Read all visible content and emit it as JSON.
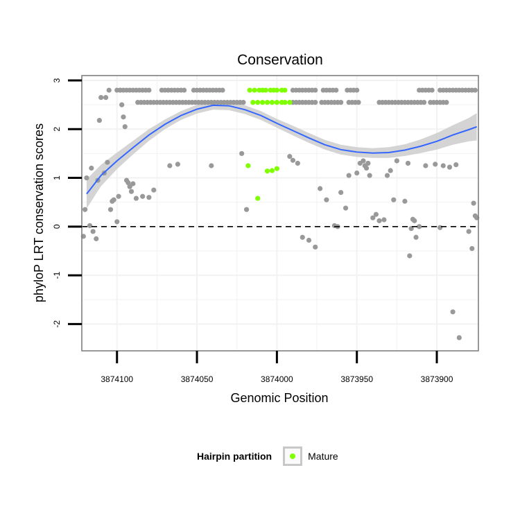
{
  "chart_data": {
    "type": "scatter",
    "title": "Conservation",
    "xlabel": "Genomic Position",
    "ylabel": "phyloP LRT conservation scores",
    "x_reversed": true,
    "xlim": [
      3874122,
      3873874
    ],
    "ylim": [
      -2.55,
      3.1
    ],
    "x_ticks": [
      3874100,
      3874050,
      3874000,
      3873950,
      3873900
    ],
    "x_tick_labels": [
      "3874100",
      "3874050",
      "3874000",
      "3873950",
      "3873900"
    ],
    "y_ticks": [
      -2,
      -1,
      0,
      1,
      2,
      3
    ],
    "y_tick_labels": [
      "-2",
      "-1",
      "0",
      "1",
      "2",
      "3"
    ],
    "hline": {
      "y": 0,
      "style": "dashed"
    },
    "grid": true,
    "background": "#ffffff",
    "colors": {
      "other": "#999999",
      "mature": "#7fff00",
      "smooth": "#3366ff",
      "band": "#cccccc",
      "panel_border": "#7f7f7f",
      "grid": "#f2f2f2"
    },
    "smooth": {
      "x": [
        3874119,
        3874110,
        3874100,
        3874090,
        3874080,
        3874070,
        3874060,
        3874050,
        3874040,
        3874030,
        3874020,
        3874010,
        3874000,
        3873990,
        3873980,
        3873970,
        3873960,
        3873950,
        3873940,
        3873930,
        3873920,
        3873910,
        3873900,
        3873890,
        3873880,
        3873875
      ],
      "y": [
        0.67,
        1.05,
        1.35,
        1.62,
        1.88,
        2.1,
        2.28,
        2.41,
        2.49,
        2.48,
        2.4,
        2.28,
        2.12,
        1.97,
        1.82,
        1.68,
        1.58,
        1.53,
        1.51,
        1.52,
        1.57,
        1.65,
        1.75,
        1.88,
        1.99,
        2.05
      ],
      "se": [
        0.3,
        0.22,
        0.17,
        0.14,
        0.12,
        0.1,
        0.09,
        0.09,
        0.09,
        0.09,
        0.09,
        0.09,
        0.09,
        0.1,
        0.1,
        0.1,
        0.1,
        0.1,
        0.1,
        0.11,
        0.12,
        0.14,
        0.17,
        0.2,
        0.24,
        0.28
      ]
    },
    "series": [
      {
        "name": "Mature",
        "color": "#7fff00",
        "x": [
          3874017,
          3874014,
          3874011,
          3874009,
          3874007,
          3874004,
          3874002,
          3874000,
          3873997,
          3873995,
          3874015,
          3874012,
          3874009,
          3874006,
          3874003,
          3874000,
          3873997,
          3873995,
          3873992,
          3874018,
          3874012,
          3874006,
          3874003,
          3874000
        ],
        "y": [
          2.8,
          2.8,
          2.8,
          2.8,
          2.8,
          2.8,
          2.8,
          2.8,
          2.8,
          2.8,
          2.55,
          2.55,
          2.55,
          2.55,
          2.55,
          2.55,
          2.55,
          2.55,
          2.55,
          1.25,
          0.58,
          1.14,
          1.15,
          1.19
        ]
      },
      {
        "x": [
          3874121,
          3874120,
          3874119,
          3874117,
          3874116,
          3874115,
          3874113,
          3874112,
          3874111,
          3874110,
          3874108,
          3874107,
          3874106,
          3874105,
          3874104,
          3874103,
          3874102,
          3874100,
          3874099,
          3874098,
          3874097,
          3874096,
          3874095,
          3874094,
          3874093,
          3874092,
          3874091,
          3874090,
          3874088,
          3874084,
          3874080,
          3874077,
          3874067,
          3874062,
          3874041,
          3874022,
          3874019,
          3873992,
          3873990,
          3873987,
          3873984,
          3873980,
          3873976,
          3873973,
          3873969,
          3873964,
          3873962,
          3873960,
          3873957,
          3873955,
          3873950,
          3873948,
          3873946,
          3873945,
          3873944,
          3873943,
          3873942,
          3873940,
          3873938,
          3873936,
          3873933,
          3873931,
          3873929,
          3873927,
          3873925,
          3873918,
          3873916,
          3873914,
          3873911,
          3873907,
          3873901,
          3873896,
          3873892,
          3873888,
          3873880,
          3873878,
          3873877,
          3873876,
          3873875,
          3873920,
          3873917,
          3873915,
          3873913,
          3873898,
          3873890,
          3873886
        ],
        "y": [
          -0.2,
          0.35,
          1.0,
          0.02,
          1.2,
          -0.1,
          -0.25,
          0.95,
          2.18,
          2.65,
          1.1,
          2.65,
          1.32,
          2.8,
          0.35,
          0.52,
          0.55,
          0.1,
          0.62,
          2.8,
          2.5,
          2.25,
          2.05,
          0.95,
          0.9,
          0.82,
          0.72,
          0.88,
          0.58,
          0.62,
          0.6,
          0.75,
          1.25,
          1.28,
          1.25,
          1.5,
          0.35,
          1.44,
          1.36,
          1.3,
          -0.22,
          -0.28,
          -0.42,
          0.78,
          0.55,
          0.02,
          0.0,
          0.7,
          0.38,
          1.05,
          1.1,
          1.3,
          1.35,
          1.25,
          1.2,
          1.3,
          1.05,
          0.18,
          0.25,
          0.12,
          0.14,
          1.05,
          1.15,
          0.55,
          1.35,
          1.3,
          -0.04,
          0.12,
          0.0,
          1.25,
          1.28,
          1.25,
          1.22,
          1.27,
          -0.1,
          -0.45,
          0.48,
          0.22,
          0.18,
          0.52,
          -0.6,
          0.15,
          -0.22,
          -0.02,
          -1.75,
          -2.28
        ],
        "band_rows": [
          {
            "y": 2.8,
            "x_from": 3874100,
            "x_to": 3874080,
            "step": 2
          },
          {
            "y": 2.8,
            "x_from": 3874072,
            "x_to": 3874058,
            "step": 2
          },
          {
            "y": 2.8,
            "x_from": 3874052,
            "x_to": 3874033,
            "step": 2
          },
          {
            "y": 2.8,
            "x_from": 3873990,
            "x_to": 3873975,
            "step": 2
          },
          {
            "y": 2.8,
            "x_from": 3873971,
            "x_to": 3873962,
            "step": 2
          },
          {
            "y": 2.8,
            "x_from": 3873956,
            "x_to": 3873950,
            "step": 2
          },
          {
            "y": 2.8,
            "x_from": 3873911,
            "x_to": 3873903,
            "step": 2
          },
          {
            "y": 2.8,
            "x_from": 3873898,
            "x_to": 3873875,
            "step": 2
          },
          {
            "y": 2.55,
            "x_from": 3874087,
            "x_to": 3874020,
            "step": 2
          },
          {
            "y": 2.55,
            "x_from": 3873990,
            "x_to": 3873975,
            "step": 2
          },
          {
            "y": 2.55,
            "x_from": 3873972,
            "x_to": 3873960,
            "step": 2
          },
          {
            "y": 2.55,
            "x_from": 3873955,
            "x_to": 3873948,
            "step": 2
          },
          {
            "y": 2.55,
            "x_from": 3873936,
            "x_to": 3873908,
            "step": 2
          },
          {
            "y": 2.55,
            "x_from": 3873904,
            "x_to": 3873893,
            "step": 2
          }
        ]
      }
    ],
    "legend": {
      "title": "Hairpin partition",
      "entries": [
        "Mature"
      ],
      "position": "bottom"
    }
  }
}
